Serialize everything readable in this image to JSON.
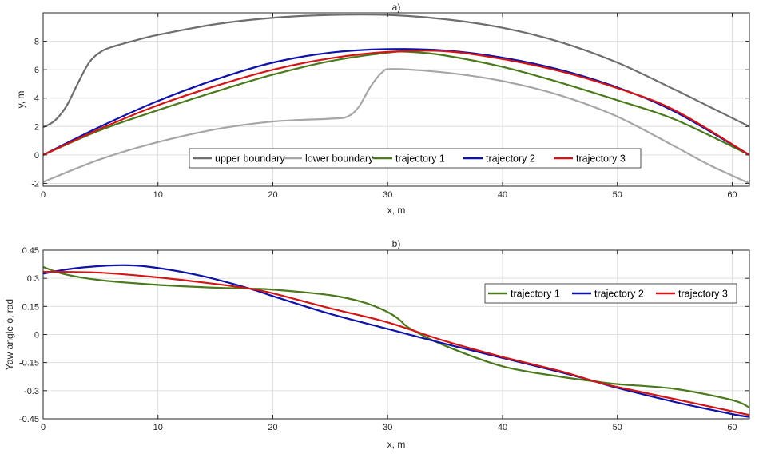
{
  "chart_data": [
    {
      "type": "line",
      "title": "a)",
      "xlabel": "x, m",
      "ylabel": "y, m",
      "xlim": [
        0,
        61.5
      ],
      "ylim": [
        -2.2,
        10
      ],
      "xticks": [
        0,
        10,
        20,
        30,
        40,
        50,
        60
      ],
      "yticks": [
        -2,
        0,
        2,
        4,
        6,
        8
      ],
      "xtick_labels": [
        "0",
        "10",
        "20",
        "30",
        "40",
        "50",
        "60"
      ],
      "ytick_labels": [
        "-2",
        "0",
        "2",
        "4",
        "6",
        "8"
      ],
      "grid": true,
      "legend_position": "bottom-center",
      "series": [
        {
          "name": "upper boundary",
          "color": "#6e6e6e",
          "x": [
            0,
            1,
            2,
            3,
            4,
            5,
            6,
            8,
            10,
            15,
            20,
            25,
            30,
            35,
            40,
            45,
            50,
            55,
            58,
            61.5
          ],
          "y": [
            1.95,
            2.4,
            3.4,
            5.0,
            6.5,
            7.25,
            7.6,
            8.05,
            8.45,
            9.2,
            9.65,
            9.85,
            9.85,
            9.55,
            8.95,
            7.95,
            6.5,
            4.6,
            3.4,
            2.0
          ]
        },
        {
          "name": "lower boundary",
          "color": "#a6a6a6",
          "x": [
            0,
            5,
            10,
            15,
            20,
            25,
            26.5,
            27.5,
            28.5,
            29.5,
            30.5,
            35,
            40,
            45,
            50,
            55,
            58,
            61.5
          ],
          "y": [
            -1.9,
            -0.3,
            0.9,
            1.8,
            2.35,
            2.55,
            2.7,
            3.4,
            4.8,
            5.8,
            6.05,
            5.8,
            5.2,
            4.2,
            2.7,
            0.6,
            -0.7,
            -2.0
          ]
        },
        {
          "name": "trajectory 1",
          "color": "#4a7a1b",
          "x": [
            0,
            5,
            10,
            15,
            20,
            25,
            30,
            32,
            35,
            40,
            45,
            50,
            55,
            61.5
          ],
          "y": [
            0,
            1.75,
            3.15,
            4.45,
            5.65,
            6.6,
            7.2,
            7.25,
            7.0,
            6.2,
            5.1,
            3.85,
            2.5,
            0
          ]
        },
        {
          "name": "trajectory 2",
          "color": "#0f12a8",
          "x": [
            0,
            5,
            10,
            15,
            20,
            25,
            30,
            35,
            40,
            45,
            50,
            55,
            61.5
          ],
          "y": [
            0,
            2.0,
            3.8,
            5.3,
            6.5,
            7.2,
            7.45,
            7.35,
            6.85,
            6.0,
            4.75,
            3.05,
            0
          ]
        },
        {
          "name": "trajectory 3",
          "color": "#d41515",
          "x": [
            0,
            5,
            10,
            15,
            20,
            25,
            30,
            35,
            40,
            45,
            50,
            55,
            61.5
          ],
          "y": [
            0,
            1.85,
            3.5,
            4.85,
            6.0,
            6.8,
            7.25,
            7.3,
            6.75,
            5.9,
            4.7,
            3.15,
            0
          ]
        }
      ]
    },
    {
      "type": "line",
      "title": "b)",
      "xlabel": "x, m",
      "ylabel": "Yaw angle ϕ, rad",
      "xlim": [
        0,
        61.5
      ],
      "ylim": [
        -0.45,
        0.45
      ],
      "xticks": [
        0,
        10,
        20,
        30,
        40,
        50,
        60
      ],
      "yticks": [
        -0.45,
        -0.3,
        -0.15,
        0,
        0.15,
        0.3,
        0.45
      ],
      "xtick_labels": [
        "0",
        "10",
        "20",
        "30",
        "40",
        "50",
        "60"
      ],
      "ytick_labels": [
        "-0.45",
        "-0.3",
        "-0.15",
        "0",
        "0.15",
        "0.3",
        "0.45"
      ],
      "grid": true,
      "legend_position": "top-right",
      "series": [
        {
          "name": "trajectory 1",
          "color": "#4a7a1b",
          "x": [
            0,
            2,
            5,
            10,
            15,
            18,
            20,
            25,
            28,
            30,
            31,
            32,
            35,
            40,
            45,
            48,
            50,
            55,
            60,
            61.5
          ],
          "y": [
            0.36,
            0.32,
            0.29,
            0.265,
            0.25,
            0.245,
            0.24,
            0.21,
            0.17,
            0.12,
            0.08,
            0.03,
            -0.06,
            -0.17,
            -0.225,
            -0.25,
            -0.265,
            -0.29,
            -0.35,
            -0.39
          ]
        },
        {
          "name": "trajectory 2",
          "color": "#0f12a8",
          "x": [
            0,
            3,
            7,
            10,
            14,
            18,
            20,
            25,
            30,
            35,
            40,
            45,
            48,
            50,
            55,
            60,
            61.5
          ],
          "y": [
            0.325,
            0.355,
            0.37,
            0.355,
            0.31,
            0.245,
            0.205,
            0.11,
            0.03,
            -0.05,
            -0.125,
            -0.2,
            -0.25,
            -0.285,
            -0.36,
            -0.425,
            -0.44
          ]
        },
        {
          "name": "trajectory 3",
          "color": "#d41515",
          "x": [
            0,
            5,
            10,
            15,
            18,
            20,
            25,
            30,
            35,
            40,
            45,
            48,
            50,
            55,
            60,
            61.5
          ],
          "y": [
            0.335,
            0.33,
            0.305,
            0.27,
            0.245,
            0.22,
            0.14,
            0.065,
            -0.035,
            -0.12,
            -0.195,
            -0.25,
            -0.28,
            -0.345,
            -0.41,
            -0.43
          ]
        }
      ]
    }
  ]
}
